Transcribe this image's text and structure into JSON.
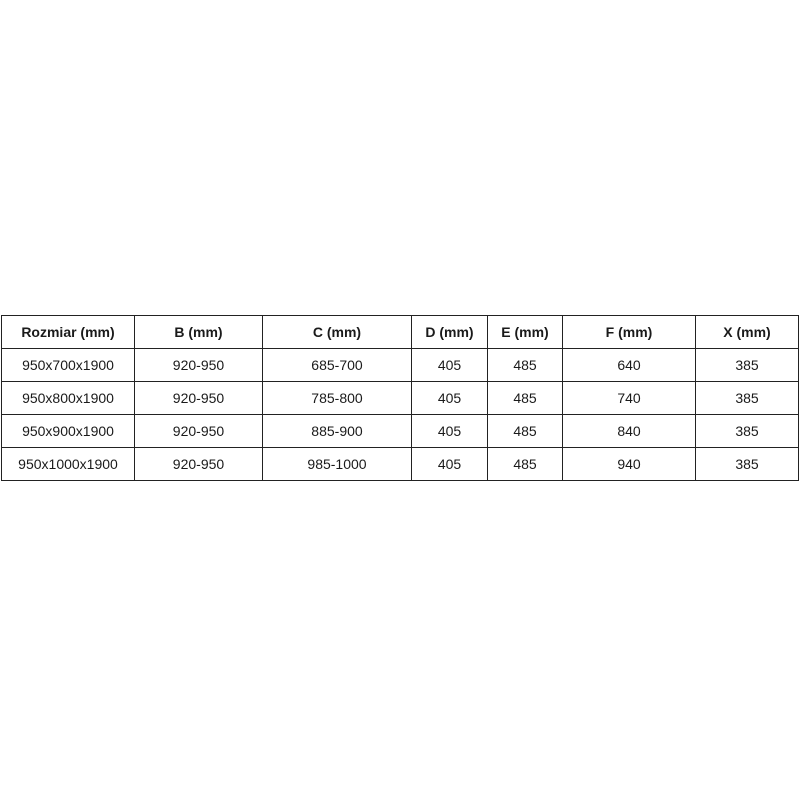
{
  "table": {
    "headers": [
      "Rozmiar (mm)",
      "B (mm)",
      "C (mm)",
      "D (mm)",
      "E (mm)",
      "F (mm)",
      "X (mm)"
    ],
    "rows": [
      [
        "950x700x1900",
        "920-950",
        "685-700",
        "405",
        "485",
        "640",
        "385"
      ],
      [
        "950x800x1900",
        "920-950",
        "785-800",
        "405",
        "485",
        "740",
        "385"
      ],
      [
        "950x900x1900",
        "920-950",
        "885-900",
        "405",
        "485",
        "840",
        "385"
      ],
      [
        "950x1000x1900",
        "920-950",
        "985-1000",
        "405",
        "485",
        "940",
        "385"
      ]
    ]
  }
}
